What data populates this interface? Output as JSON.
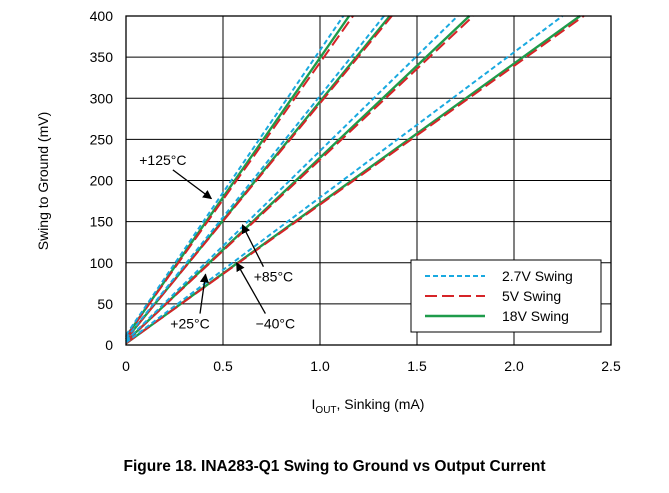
{
  "figure": {
    "caption": "Figure 18. INA283-Q1 Swing to Ground vs Output Current"
  },
  "chart_data": {
    "type": "line",
    "xlabel_main": "I",
    "xlabel_sub": "OUT",
    "xlabel_rest": ", Sinking (mA)",
    "ylabel": "Swing to Ground (mV)",
    "xlim": [
      0,
      2.5
    ],
    "ylim": [
      0,
      400
    ],
    "x_ticks": [
      0,
      0.5,
      1.0,
      1.5,
      2.0,
      2.5
    ],
    "x_tick_labels": [
      "0",
      "0.5",
      "1.0",
      "1.5",
      "2.0",
      "2.5"
    ],
    "y_ticks": [
      0,
      50,
      100,
      150,
      200,
      250,
      300,
      350,
      400
    ],
    "y_tick_labels": [
      "0",
      "50",
      "100",
      "150",
      "200",
      "250",
      "300",
      "350",
      "400"
    ],
    "grid": true,
    "legend_position": "bottom-right",
    "legend": [
      {
        "name": "2.7V Swing",
        "color": "#19a9e0",
        "dash": "short"
      },
      {
        "name": "5V Swing",
        "color": "#d62428",
        "dash": "long"
      },
      {
        "name": "18V Swing",
        "color": "#1e9b4a",
        "dash": "solid"
      }
    ],
    "series": [
      {
        "name": "2.7V Swing",
        "temperature": "+125°C",
        "color": "#19a9e0",
        "style": "short",
        "x": [
          0,
          1.12
        ],
        "y": [
          12,
          400
        ]
      },
      {
        "name": "5V Swing",
        "temperature": "+125°C",
        "color": "#d62428",
        "style": "long",
        "x": [
          0,
          1.17
        ],
        "y": [
          10,
          400
        ]
      },
      {
        "name": "18V Swing",
        "temperature": "+125°C",
        "color": "#1e9b4a",
        "style": "solid",
        "x": [
          0,
          1.15
        ],
        "y": [
          10,
          400
        ]
      },
      {
        "name": "2.7V Swing",
        "temperature": "+85°C",
        "color": "#19a9e0",
        "style": "short",
        "x": [
          0,
          1.33
        ],
        "y": [
          8,
          400
        ]
      },
      {
        "name": "5V Swing",
        "temperature": "+85°C",
        "color": "#d62428",
        "style": "long",
        "x": [
          0,
          1.37
        ],
        "y": [
          7,
          400
        ]
      },
      {
        "name": "18V Swing",
        "temperature": "+85°C",
        "color": "#1e9b4a",
        "style": "solid",
        "x": [
          0,
          1.36
        ],
        "y": [
          7,
          400
        ]
      },
      {
        "name": "2.7V Swing",
        "temperature": "+25°C",
        "color": "#19a9e0",
        "style": "short",
        "x": [
          0,
          1.71
        ],
        "y": [
          5,
          400
        ]
      },
      {
        "name": "5V Swing",
        "temperature": "+25°C",
        "color": "#d62428",
        "style": "long",
        "x": [
          0,
          1.79
        ],
        "y": [
          4,
          400
        ]
      },
      {
        "name": "18V Swing",
        "temperature": "+25°C",
        "color": "#1e9b4a",
        "style": "solid",
        "x": [
          0,
          1.77
        ],
        "y": [
          4,
          400
        ]
      },
      {
        "name": "2.7V Swing",
        "temperature": "−40°C",
        "color": "#19a9e0",
        "style": "short",
        "x": [
          0,
          2.25
        ],
        "y": [
          3,
          400
        ]
      },
      {
        "name": "5V Swing",
        "temperature": "−40°C",
        "color": "#d62428",
        "style": "long",
        "x": [
          0,
          2.36
        ],
        "y": [
          2,
          400
        ]
      },
      {
        "name": "18V Swing",
        "temperature": "−40°C",
        "color": "#1e9b4a",
        "style": "solid",
        "x": [
          0,
          2.34
        ],
        "y": [
          2,
          400
        ]
      }
    ],
    "annotations": [
      {
        "text": "+125°C",
        "label_x": 0.19,
        "label_y": 219,
        "arrow_to_x": 0.44,
        "arrow_to_y": 178
      },
      {
        "text": "+85°C",
        "label_x": 0.76,
        "label_y": 77,
        "arrow_to_x": 0.6,
        "arrow_to_y": 146
      },
      {
        "text": "+25°C",
        "label_x": 0.33,
        "label_y": 20,
        "arrow_to_x": 0.41,
        "arrow_to_y": 86
      },
      {
        "text": "−40°C",
        "label_x": 0.77,
        "label_y": 20,
        "arrow_to_x": 0.57,
        "arrow_to_y": 100
      }
    ]
  }
}
